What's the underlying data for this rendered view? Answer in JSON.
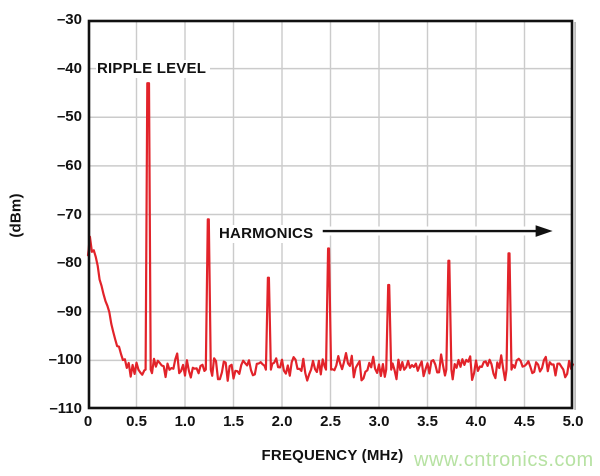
{
  "colors": {
    "trace_red": "#e2232a",
    "grid_gray": "#cbcbcb",
    "axis_black": "#111111",
    "border_shadow_gray": "#b5b5b5",
    "watermark_green": "#b7e2a3",
    "background": "#ffffff"
  },
  "watermark": {
    "text": "www.cntronics.com"
  },
  "chart_data": {
    "type": "line",
    "title": "",
    "xlabel": "FREQUENCY (MHz)",
    "ylabel": "(dBm)",
    "xlim": [
      0,
      5
    ],
    "ylim": [
      -110,
      -30
    ],
    "grid": true,
    "legend": "none",
    "x_ticks": [
      {
        "label": "0",
        "value": 0
      },
      {
        "label": "0.5",
        "value": 0.5
      },
      {
        "label": "1.0",
        "value": 1.0
      },
      {
        "label": "1.5",
        "value": 1.5
      },
      {
        "label": "2.0",
        "value": 2.0
      },
      {
        "label": "2.5",
        "value": 2.5
      },
      {
        "label": "3.0",
        "value": 3.0
      },
      {
        "label": "3.5",
        "value": 3.5
      },
      {
        "label": "4.0",
        "value": 4.0
      },
      {
        "label": "4.5",
        "value": 4.5
      },
      {
        "label": "5.0",
        "value": 5.0
      }
    ],
    "y_ticks": [
      {
        "label": "–30",
        "value": -30
      },
      {
        "label": "–40",
        "value": -40
      },
      {
        "label": "–50",
        "value": -50
      },
      {
        "label": "–60",
        "value": -60
      },
      {
        "label": "–70",
        "value": -70
      },
      {
        "label": "–80",
        "value": -80
      },
      {
        "label": "–90",
        "value": -90
      },
      {
        "label": "–100",
        "value": -100
      },
      {
        "label": "–110",
        "value": -110
      }
    ],
    "series": [
      {
        "name": "output-spectrum",
        "color": "#e2232a",
        "style": "noisy-spectrum-trace"
      }
    ],
    "noise_floor_dbm": -101.3,
    "noise_peak_to_peak_db": 5,
    "low_freq_rolloff_points": [
      [
        0,
        -77.5
      ],
      [
        0.015,
        -75
      ],
      [
        0.04,
        -76.5
      ],
      [
        0.07,
        -78.5
      ],
      [
        0.1,
        -80.5
      ],
      [
        0.13,
        -84.5
      ],
      [
        0.155,
        -86.5
      ],
      [
        0.185,
        -88.5
      ],
      [
        0.22,
        -89.8
      ],
      [
        0.25,
        -92.5
      ],
      [
        0.285,
        -95.5
      ],
      [
        0.32,
        -97.5
      ],
      [
        0.37,
        -99.8
      ],
      [
        0.42,
        -100.8
      ],
      [
        0.47,
        -101.3
      ]
    ],
    "peaks": [
      {
        "name": "ripple-fundamental",
        "freq_mhz": 0.62,
        "level_dbm": -43,
        "top_half_width_mhz": 0.009
      },
      {
        "name": "harmonic-2",
        "freq_mhz": 1.24,
        "level_dbm": -71,
        "top_half_width_mhz": 0.005
      },
      {
        "name": "harmonic-3",
        "freq_mhz": 1.86,
        "level_dbm": -83,
        "top_half_width_mhz": 0.005
      },
      {
        "name": "harmonic-4",
        "freq_mhz": 2.48,
        "level_dbm": -77,
        "top_half_width_mhz": 0.005
      },
      {
        "name": "harmonic-5",
        "freq_mhz": 3.1,
        "level_dbm": -84.5,
        "top_half_width_mhz": 0.005
      },
      {
        "name": "harmonic-6",
        "freq_mhz": 3.72,
        "level_dbm": -79.5,
        "top_half_width_mhz": 0.005
      },
      {
        "name": "harmonic-7",
        "freq_mhz": 4.34,
        "level_dbm": -78,
        "top_half_width_mhz": 0.005
      }
    ],
    "annotations": {
      "ripple": {
        "text": "RIPPLE LEVEL"
      },
      "harmonics": {
        "text": "HARMONICS",
        "arrow": {
          "x1_mhz": 2.42,
          "x2_mhz": 4.79,
          "level_dbm": -73.4
        }
      }
    },
    "seed": 12
  }
}
